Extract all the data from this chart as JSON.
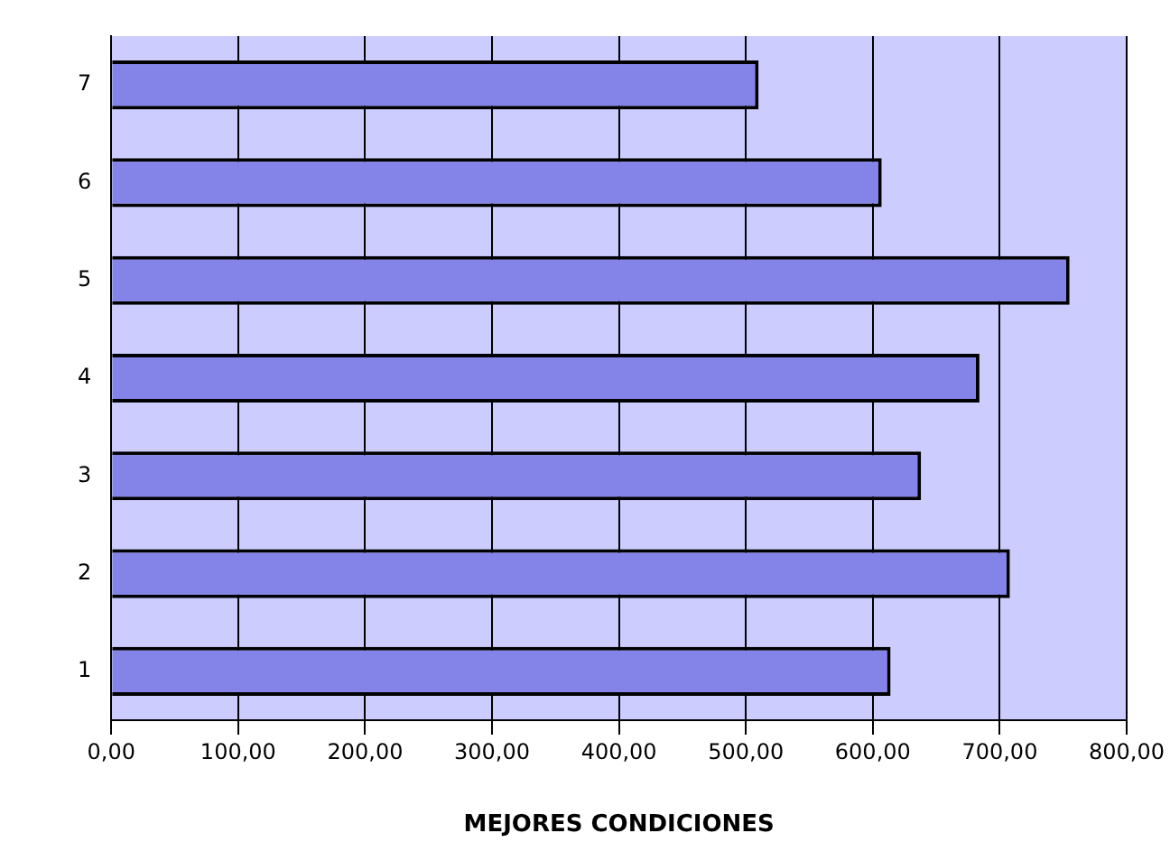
{
  "chart_data": {
    "type": "bar",
    "orientation": "horizontal",
    "xlabel": "MEJORES CONDICIONES",
    "categories": [
      "7",
      "6",
      "5",
      "4",
      "3",
      "2",
      "1"
    ],
    "values": [
      510,
      607,
      755,
      684,
      638,
      708,
      614
    ],
    "color": "#8484e8",
    "xlim": [
      0,
      800
    ],
    "xticks": [
      {
        "value": 0,
        "label": "0,00"
      },
      {
        "value": 100,
        "label": "100,00"
      },
      {
        "value": 200,
        "label": "200,00"
      },
      {
        "value": 300,
        "label": "300,00"
      },
      {
        "value": 400,
        "label": "400,00"
      },
      {
        "value": 500,
        "label": "500,00"
      },
      {
        "value": 600,
        "label": "600,00"
      },
      {
        "value": 700,
        "label": "700,00"
      },
      {
        "value": 800,
        "label": "800,00"
      }
    ],
    "grid": "x",
    "legend": false
  }
}
